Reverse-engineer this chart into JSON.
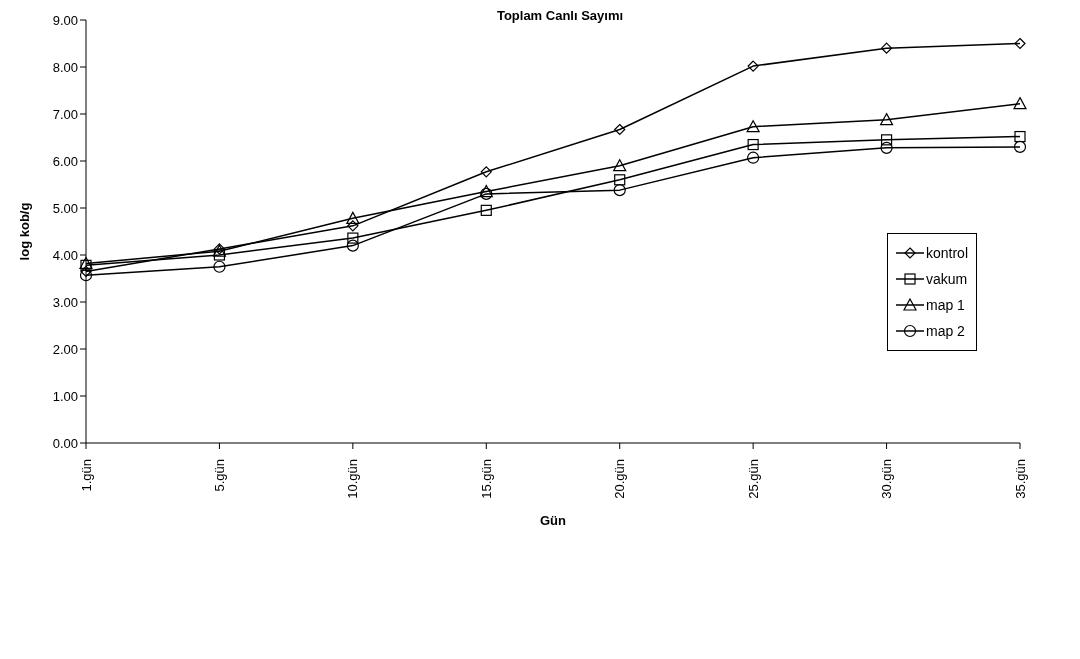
{
  "chart_data": {
    "type": "line",
    "title": "Toplam Canlı Sayımı",
    "xlabel": "Gün",
    "ylabel": "log kob/g",
    "categories": [
      "1.gün",
      "5.gün",
      "10.gün",
      "15.gün",
      "20.gün",
      "25.gün",
      "30.gün",
      "35.gün"
    ],
    "series": [
      {
        "name": "kontrol",
        "color": "#000000",
        "marker": "diamond",
        "values": [
          3.65,
          4.13,
          4.62,
          5.77,
          6.67,
          8.02,
          8.4,
          8.5
        ]
      },
      {
        "name": "vakum",
        "color": "#000000",
        "marker": "square",
        "values": [
          3.78,
          4.0,
          4.36,
          4.95,
          5.6,
          6.35,
          6.45,
          6.52
        ]
      },
      {
        "name": "map 1",
        "color": "#000000",
        "marker": "triangle",
        "values": [
          3.82,
          4.08,
          4.78,
          5.35,
          5.9,
          6.73,
          6.88,
          7.22
        ]
      },
      {
        "name": "map 2",
        "color": "#000000",
        "marker": "circle",
        "values": [
          3.57,
          3.75,
          4.2,
          5.3,
          5.38,
          6.07,
          6.28,
          6.3
        ]
      }
    ],
    "ylim": [
      0,
      9
    ],
    "yticks": [
      {
        "value": 0,
        "label": "0.00"
      },
      {
        "value": 1,
        "label": "1.00"
      },
      {
        "value": 2,
        "label": "2.00"
      },
      {
        "value": 3,
        "label": "3.00"
      },
      {
        "value": 4,
        "label": "4.00"
      },
      {
        "value": 5,
        "label": "5.00"
      },
      {
        "value": 6,
        "label": "6.00"
      },
      {
        "value": 7,
        "label": "7.00"
      },
      {
        "value": 8,
        "label": "8.00"
      },
      {
        "value": 9,
        "label": "9.00"
      }
    ],
    "legend": "right",
    "grid": false,
    "line_style": "solid"
  }
}
